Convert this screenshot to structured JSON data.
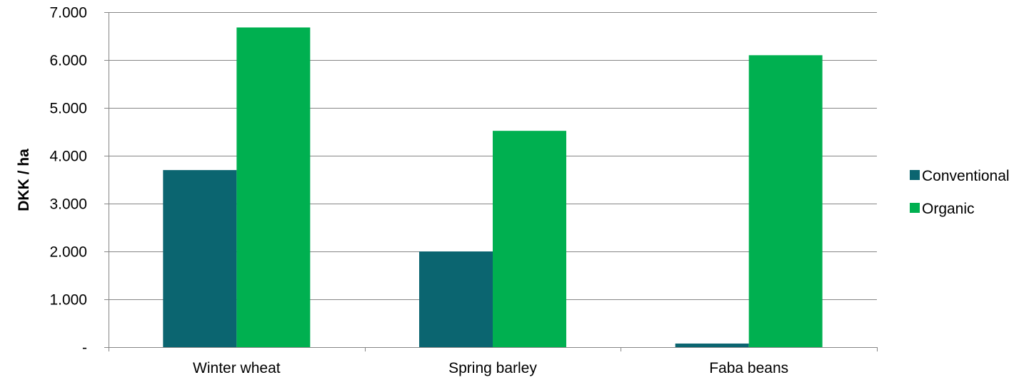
{
  "chart_data": {
    "type": "bar",
    "title": "",
    "xlabel": "",
    "ylabel": "DKK / ha",
    "categories": [
      "Winter wheat",
      "Spring barley",
      "Faba beans"
    ],
    "series": [
      {
        "name": "Conventional",
        "color": "#0b6570",
        "values": [
          3700,
          2000,
          75
        ]
      },
      {
        "name": "Organic",
        "color": "#00b050",
        "values": [
          6680,
          4520,
          6100
        ]
      }
    ],
    "ylim": [
      0,
      7000
    ],
    "yticks": [
      0,
      1000,
      2000,
      3000,
      4000,
      5000,
      6000,
      7000
    ],
    "ytick_labels": [
      "-",
      "1.000",
      "2.000",
      "3.000",
      "4.000",
      "5.000",
      "6.000",
      "7.000"
    ],
    "grid": "horizontal",
    "legend_position": "right",
    "gridline_color": "#868686"
  }
}
